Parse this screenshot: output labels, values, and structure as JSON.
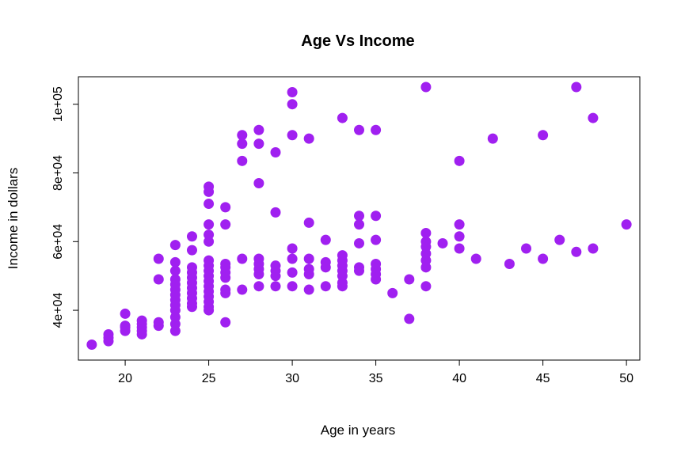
{
  "chart_data": {
    "type": "scatter",
    "title": "Age Vs Income",
    "xlabel": "Age in years",
    "ylabel": "Income in dollars",
    "xlim": [
      17.2,
      50.8
    ],
    "ylim": [
      25500,
      108000
    ],
    "x_ticks": [
      20,
      25,
      30,
      35,
      40,
      45,
      50
    ],
    "x_tick_labels": [
      "20",
      "25",
      "30",
      "35",
      "40",
      "45",
      "50"
    ],
    "y_ticks": [
      40000,
      60000,
      80000,
      100000
    ],
    "y_tick_labels": [
      "4e+04",
      "6e+04",
      "8e+04",
      "1e+05"
    ],
    "grid": false,
    "point_color": "#a020f0",
    "points": [
      {
        "x": 18,
        "y": 30000
      },
      {
        "x": 19,
        "y": 31000
      },
      {
        "x": 19,
        "y": 32000
      },
      {
        "x": 19,
        "y": 33000
      },
      {
        "x": 20,
        "y": 34000
      },
      {
        "x": 20,
        "y": 35000
      },
      {
        "x": 20,
        "y": 35500
      },
      {
        "x": 20,
        "y": 39000
      },
      {
        "x": 21,
        "y": 33000
      },
      {
        "x": 21,
        "y": 34000
      },
      {
        "x": 21,
        "y": 35000
      },
      {
        "x": 21,
        "y": 36000
      },
      {
        "x": 21,
        "y": 37000
      },
      {
        "x": 22,
        "y": 35500
      },
      {
        "x": 22,
        "y": 36500
      },
      {
        "x": 22,
        "y": 49000
      },
      {
        "x": 22,
        "y": 55000
      },
      {
        "x": 23,
        "y": 34000
      },
      {
        "x": 23,
        "y": 36000
      },
      {
        "x": 23,
        "y": 38000
      },
      {
        "x": 23,
        "y": 40000
      },
      {
        "x": 23,
        "y": 41500
      },
      {
        "x": 23,
        "y": 43000
      },
      {
        "x": 23,
        "y": 44500
      },
      {
        "x": 23,
        "y": 46000
      },
      {
        "x": 23,
        "y": 47500
      },
      {
        "x": 23,
        "y": 49000
      },
      {
        "x": 23,
        "y": 51500
      },
      {
        "x": 23,
        "y": 54000
      },
      {
        "x": 23,
        "y": 59000
      },
      {
        "x": 24,
        "y": 41000
      },
      {
        "x": 24,
        "y": 42000
      },
      {
        "x": 24,
        "y": 43500
      },
      {
        "x": 24,
        "y": 45000
      },
      {
        "x": 24,
        "y": 46500
      },
      {
        "x": 24,
        "y": 48000
      },
      {
        "x": 24,
        "y": 49500
      },
      {
        "x": 24,
        "y": 51000
      },
      {
        "x": 24,
        "y": 52500
      },
      {
        "x": 24,
        "y": 57500
      },
      {
        "x": 24,
        "y": 61500
      },
      {
        "x": 25,
        "y": 40000
      },
      {
        "x": 25,
        "y": 41000
      },
      {
        "x": 25,
        "y": 42500
      },
      {
        "x": 25,
        "y": 44000
      },
      {
        "x": 25,
        "y": 45500
      },
      {
        "x": 25,
        "y": 47000
      },
      {
        "x": 25,
        "y": 48500
      },
      {
        "x": 25,
        "y": 50000
      },
      {
        "x": 25,
        "y": 51500
      },
      {
        "x": 25,
        "y": 53000
      },
      {
        "x": 25,
        "y": 54500
      },
      {
        "x": 25,
        "y": 60000
      },
      {
        "x": 25,
        "y": 62000
      },
      {
        "x": 25,
        "y": 65000
      },
      {
        "x": 25,
        "y": 71000
      },
      {
        "x": 25,
        "y": 74500
      },
      {
        "x": 25,
        "y": 76000
      },
      {
        "x": 26,
        "y": 36500
      },
      {
        "x": 26,
        "y": 45000
      },
      {
        "x": 26,
        "y": 46000
      },
      {
        "x": 26,
        "y": 49500
      },
      {
        "x": 26,
        "y": 51000
      },
      {
        "x": 26,
        "y": 52500
      },
      {
        "x": 26,
        "y": 53500
      },
      {
        "x": 26,
        "y": 65000
      },
      {
        "x": 26,
        "y": 70000
      },
      {
        "x": 27,
        "y": 46000
      },
      {
        "x": 27,
        "y": 55000
      },
      {
        "x": 27,
        "y": 83500
      },
      {
        "x": 27,
        "y": 88500
      },
      {
        "x": 27,
        "y": 91000
      },
      {
        "x": 28,
        "y": 47000
      },
      {
        "x": 28,
        "y": 50500
      },
      {
        "x": 28,
        "y": 52000
      },
      {
        "x": 28,
        "y": 53500
      },
      {
        "x": 28,
        "y": 55000
      },
      {
        "x": 28,
        "y": 77000
      },
      {
        "x": 28,
        "y": 88500
      },
      {
        "x": 28,
        "y": 92500
      },
      {
        "x": 29,
        "y": 47000
      },
      {
        "x": 29,
        "y": 50000
      },
      {
        "x": 29,
        "y": 51500
      },
      {
        "x": 29,
        "y": 53000
      },
      {
        "x": 29,
        "y": 68500
      },
      {
        "x": 29,
        "y": 86000
      },
      {
        "x": 30,
        "y": 47000
      },
      {
        "x": 30,
        "y": 51000
      },
      {
        "x": 30,
        "y": 55000
      },
      {
        "x": 30,
        "y": 58000
      },
      {
        "x": 30,
        "y": 91000
      },
      {
        "x": 30,
        "y": 100000
      },
      {
        "x": 30,
        "y": 103500
      },
      {
        "x": 31,
        "y": 46000
      },
      {
        "x": 31,
        "y": 50500
      },
      {
        "x": 31,
        "y": 52000
      },
      {
        "x": 31,
        "y": 55000
      },
      {
        "x": 31,
        "y": 65500
      },
      {
        "x": 31,
        "y": 90000
      },
      {
        "x": 32,
        "y": 47000
      },
      {
        "x": 32,
        "y": 52500
      },
      {
        "x": 32,
        "y": 54000
      },
      {
        "x": 32,
        "y": 60500
      },
      {
        "x": 33,
        "y": 47000
      },
      {
        "x": 33,
        "y": 48000
      },
      {
        "x": 33,
        "y": 50000
      },
      {
        "x": 33,
        "y": 51500
      },
      {
        "x": 33,
        "y": 53000
      },
      {
        "x": 33,
        "y": 54500
      },
      {
        "x": 33,
        "y": 56000
      },
      {
        "x": 33,
        "y": 96000
      },
      {
        "x": 34,
        "y": 51500
      },
      {
        "x": 34,
        "y": 52500
      },
      {
        "x": 34,
        "y": 59500
      },
      {
        "x": 34,
        "y": 65000
      },
      {
        "x": 34,
        "y": 67500
      },
      {
        "x": 34,
        "y": 92500
      },
      {
        "x": 35,
        "y": 49000
      },
      {
        "x": 35,
        "y": 50500
      },
      {
        "x": 35,
        "y": 52000
      },
      {
        "x": 35,
        "y": 53500
      },
      {
        "x": 35,
        "y": 60500
      },
      {
        "x": 35,
        "y": 67500
      },
      {
        "x": 35,
        "y": 92500
      },
      {
        "x": 36,
        "y": 45000
      },
      {
        "x": 37,
        "y": 37500
      },
      {
        "x": 37,
        "y": 49000
      },
      {
        "x": 38,
        "y": 47000
      },
      {
        "x": 38,
        "y": 52500
      },
      {
        "x": 38,
        "y": 54500
      },
      {
        "x": 38,
        "y": 56500
      },
      {
        "x": 38,
        "y": 58500
      },
      {
        "x": 38,
        "y": 60000
      },
      {
        "x": 38,
        "y": 62500
      },
      {
        "x": 38,
        "y": 105000
      },
      {
        "x": 39,
        "y": 59500
      },
      {
        "x": 40,
        "y": 58000
      },
      {
        "x": 40,
        "y": 61500
      },
      {
        "x": 40,
        "y": 65000
      },
      {
        "x": 40,
        "y": 83500
      },
      {
        "x": 41,
        "y": 55000
      },
      {
        "x": 42,
        "y": 90000
      },
      {
        "x": 43,
        "y": 53500
      },
      {
        "x": 44,
        "y": 58000
      },
      {
        "x": 45,
        "y": 55000
      },
      {
        "x": 45,
        "y": 91000
      },
      {
        "x": 46,
        "y": 60500
      },
      {
        "x": 47,
        "y": 57000
      },
      {
        "x": 47,
        "y": 105000
      },
      {
        "x": 48,
        "y": 58000
      },
      {
        "x": 48,
        "y": 96000
      },
      {
        "x": 50,
        "y": 65000
      }
    ]
  }
}
